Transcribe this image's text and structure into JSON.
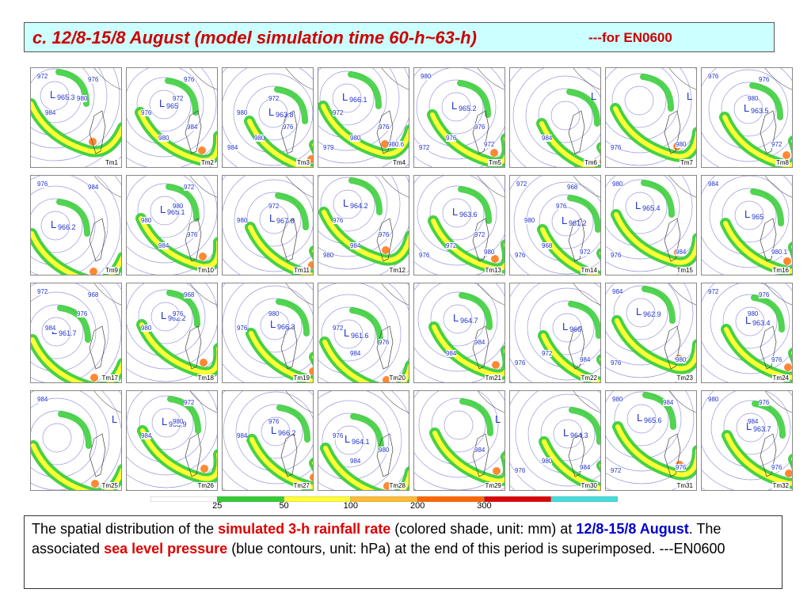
{
  "title": {
    "main": "c. 12/8-15/8 August (model simulation time 60-h~63-h)",
    "suffix": "---for EN0600"
  },
  "panels": [
    {
      "label": "Tm1",
      "low": "965.3",
      "contours": [
        "972",
        "976",
        "980",
        "984"
      ]
    },
    {
      "label": "Tm2",
      "low": "965",
      "contours": [
        "976",
        "972",
        "976",
        "984",
        "980"
      ]
    },
    {
      "label": "Tm3",
      "low": "963.8",
      "contours": [
        "972",
        "980",
        "976",
        "980",
        "984"
      ]
    },
    {
      "label": "Tm4",
      "low": "966.1",
      "contours": [
        "972",
        "976",
        "980",
        "979",
        "980.6"
      ]
    },
    {
      "label": "Tm5",
      "low": "965.2",
      "contours": [
        "976",
        "976",
        "972",
        "972",
        "980"
      ]
    },
    {
      "label": "Tm6",
      "low": "",
      "contours": [
        "984"
      ]
    },
    {
      "label": "Tm7",
      "low": "",
      "contours": [
        "976",
        "980"
      ]
    },
    {
      "label": "Tm8",
      "low": "963.5",
      "contours": [
        "972",
        "976",
        "976",
        "980"
      ]
    },
    {
      "label": "Tm9",
      "low": "966.2",
      "contours": [
        "976",
        "984"
      ]
    },
    {
      "label": "Tm10",
      "low": "965.1",
      "contours": [
        "972",
        "980",
        "980",
        "976",
        "984"
      ]
    },
    {
      "label": "Tm11",
      "low": "967.8",
      "contours": [
        "972",
        "980"
      ]
    },
    {
      "label": "Tm12",
      "low": "964.2",
      "contours": [
        "976",
        "976",
        "984",
        "980"
      ]
    },
    {
      "label": "Tm13",
      "low": "963.6",
      "contours": [
        "972",
        "972",
        "976",
        "980"
      ]
    },
    {
      "label": "Tm14",
      "low": "961.2",
      "contours": [
        "968",
        "976",
        "972",
        "972",
        "968",
        "976",
        "980"
      ]
    },
    {
      "label": "Tm15",
      "low": "965.4",
      "contours": [
        "976",
        "984",
        "980"
      ]
    },
    {
      "label": "Tm16",
      "low": "965",
      "contours": [
        "980.1",
        "984"
      ]
    },
    {
      "label": "Tm17",
      "low": "961.7",
      "contours": [
        "972",
        "968",
        "976",
        "984"
      ]
    },
    {
      "label": "Tm18",
      "low": "962.2",
      "contours": [
        "968",
        "976",
        "980"
      ]
    },
    {
      "label": "Tm19",
      "low": "966.3",
      "contours": [
        "980",
        "976"
      ]
    },
    {
      "label": "Tm20",
      "low": "961.6",
      "contours": [
        "972",
        "976",
        "984"
      ]
    },
    {
      "label": "Tm21",
      "low": "964.7",
      "contours": [
        "984",
        "984"
      ]
    },
    {
      "label": "Tm22",
      "low": "966",
      "contours": [
        "972",
        "976",
        "984"
      ]
    },
    {
      "label": "Tm23",
      "low": "962.9",
      "contours": [
        "976",
        "980",
        "984"
      ]
    },
    {
      "label": "Tm24",
      "low": "963.4",
      "contours": [
        "976",
        "972",
        "976",
        "980"
      ]
    },
    {
      "label": "Tm25",
      "low": "",
      "contours": [
        "984"
      ]
    },
    {
      "label": "Tm26",
      "low": "963.9",
      "contours": [
        "972",
        "980",
        "984"
      ]
    },
    {
      "label": "Tm27",
      "low": "966.2",
      "contours": [
        "976",
        "984"
      ]
    },
    {
      "label": "Tm28",
      "low": "964.1",
      "contours": [
        "976",
        "980",
        "984"
      ]
    },
    {
      "label": "Tm29",
      "low": "",
      "contours": [
        "984"
      ]
    },
    {
      "label": "Tm30",
      "low": "964.3",
      "contours": [
        "980",
        "976",
        "984"
      ]
    },
    {
      "label": "Tm31",
      "low": "965.6",
      "contours": [
        "972",
        "976",
        "980",
        "984"
      ]
    },
    {
      "label": "Tm32",
      "low": "963.7",
      "contours": [
        "976",
        "980",
        "976",
        "984"
      ]
    }
  ],
  "colorbar": {
    "ticks": [
      "25",
      "50",
      "100",
      "200",
      "300"
    ],
    "colors": [
      "#ffffff",
      "#33cc33",
      "#ffff33",
      "#ffbb33",
      "#ff6600",
      "#dd0000",
      "#44dddd"
    ]
  },
  "caption": {
    "p1": "The spatial distribution of the ",
    "h1": "simulated 3-h rainfall rate",
    "p2": " (colored shade, unit: mm) at ",
    "h2": "12/8-15/8 August",
    "p3": ". The associated ",
    "h3": "sea level pressure",
    "p4": " (blue contours, unit: hPa) at the end of this period is superimposed.       ---EN0600"
  }
}
